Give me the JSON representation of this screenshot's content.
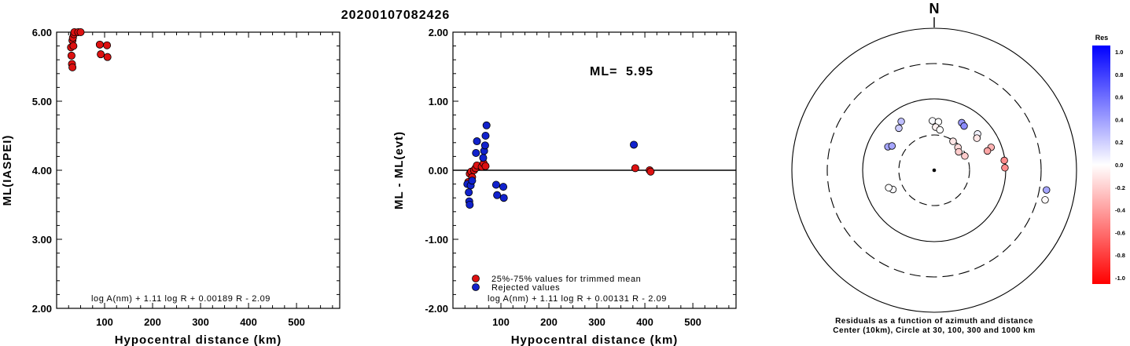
{
  "title": "20200107082426",
  "chart_data": [
    {
      "type": "scatter",
      "xlabel": "Hypocentral distance (km)",
      "ylabel": "ML(IASPEI)",
      "xlim": [
        0,
        590
      ],
      "ylim": [
        2.0,
        6.0
      ],
      "x_ticks": [
        "100",
        "200",
        "300",
        "400",
        "500"
      ],
      "y_ticks": [
        "2.00",
        "3.00",
        "4.00",
        "5.00",
        "6.00"
      ],
      "formula": "log A(nm) + 1.11 log R + 0.00189 R - 2.09",
      "series": [
        {
          "color": "#dd1111",
          "x": [
            30,
            31,
            32,
            33,
            33,
            34,
            35,
            36,
            37,
            45,
            50,
            90,
            92,
            105,
            106
          ],
          "y": [
            5.78,
            5.66,
            5.54,
            5.49,
            5.88,
            5.92,
            5.8,
            5.97,
            6.0,
            6.0,
            6.0,
            5.82,
            5.68,
            5.81,
            5.64
          ]
        }
      ]
    },
    {
      "type": "scatter",
      "xlabel": "Hypocentral distance (km)",
      "ylabel": "ML - ML(evt)",
      "xlim": [
        0,
        590
      ],
      "ylim": [
        -2.0,
        2.0
      ],
      "x_ticks": [
        "100",
        "200",
        "300",
        "400",
        "500"
      ],
      "y_ticks": [
        "-2.00",
        "-1.00",
        "0.00",
        "1.00",
        "2.00"
      ],
      "annotation_label": "ML=",
      "annotation_value": "5.95",
      "formula": "log A(nm) + 1.11 log R + 0.00131 R - 2.09",
      "legend": [
        "25%-75% values for trimmed mean",
        "Rejected values"
      ],
      "series": [
        {
          "name": "25%-75% values for trimmed mean",
          "color": "#dd1111",
          "x": [
            32,
            35,
            38,
            40,
            44,
            47,
            50,
            60,
            64,
            68,
            380,
            410,
            412
          ],
          "y": [
            -0.17,
            -0.05,
            -0.02,
            -0.1,
            0.0,
            0.03,
            0.07,
            0.05,
            0.1,
            0.06,
            0.03,
            0.0,
            -0.02
          ]
        },
        {
          "name": "Rejected values",
          "color": "#1122cc",
          "x": [
            30,
            33,
            34,
            35,
            37,
            40,
            48,
            50,
            63,
            65,
            67,
            68,
            70,
            90,
            92,
            105,
            106,
            377
          ],
          "y": [
            -0.2,
            -0.32,
            -0.45,
            -0.5,
            -0.22,
            -0.15,
            0.25,
            0.42,
            0.18,
            0.28,
            0.36,
            0.5,
            0.65,
            -0.21,
            -0.36,
            -0.24,
            -0.4,
            0.37
          ]
        }
      ]
    },
    {
      "type": "polar",
      "north_label": "N",
      "rings_km": [
        30,
        100,
        300,
        1000
      ],
      "colorbar_title": "Res",
      "colorbar_ticks": [
        "1.0",
        "0.8",
        "0.6",
        "0.4",
        "0.2",
        "0.0",
        "-0.2",
        "-0.4",
        "-0.6",
        "-0.8",
        "-1.0"
      ],
      "caption_line1": "Residuals as a function of azimuth and distance",
      "caption_line2": "Center (10km), Circle at 30, 100, 300 and 1000 km",
      "points": [
        {
          "az": 320,
          "r": 70,
          "res": 0.2
        },
        {
          "az": 326,
          "r": 75,
          "res": 0.25
        },
        {
          "az": 297,
          "r": 66,
          "res": 0.35
        },
        {
          "az": 300,
          "r": 62,
          "res": 0.35
        },
        {
          "az": 245,
          "r": 58,
          "res": 0.02
        },
        {
          "az": 249,
          "r": 62,
          "res": 0.0
        },
        {
          "az": 358,
          "r": 63,
          "res": 0.02
        },
        {
          "az": 5,
          "r": 62,
          "res": 0.0
        },
        {
          "az": 2,
          "r": 55,
          "res": -0.05
        },
        {
          "az": 8,
          "r": 52,
          "res": 0.0
        },
        {
          "az": 30,
          "r": 70,
          "res": 0.4
        },
        {
          "az": 34,
          "r": 68,
          "res": 0.45
        },
        {
          "az": 50,
          "r": 72,
          "res": 0.05
        },
        {
          "az": 53,
          "r": 68,
          "res": -0.1
        },
        {
          "az": 68,
          "r": 78,
          "res": -0.3
        },
        {
          "az": 70,
          "r": 72,
          "res": -0.35
        },
        {
          "az": 33,
          "r": 44,
          "res": -0.1
        },
        {
          "az": 46,
          "r": 42,
          "res": -0.15
        },
        {
          "az": 53,
          "r": 39,
          "res": -0.2
        },
        {
          "az": 65,
          "r": 43,
          "res": -0.2
        },
        {
          "az": 82,
          "r": 90,
          "res": -0.45
        },
        {
          "az": 88,
          "r": 90,
          "res": -0.45
        },
        {
          "az": 100,
          "r": 145,
          "res": 0.35
        },
        {
          "az": 105,
          "r": 146,
          "res": -0.02
        }
      ]
    }
  ]
}
